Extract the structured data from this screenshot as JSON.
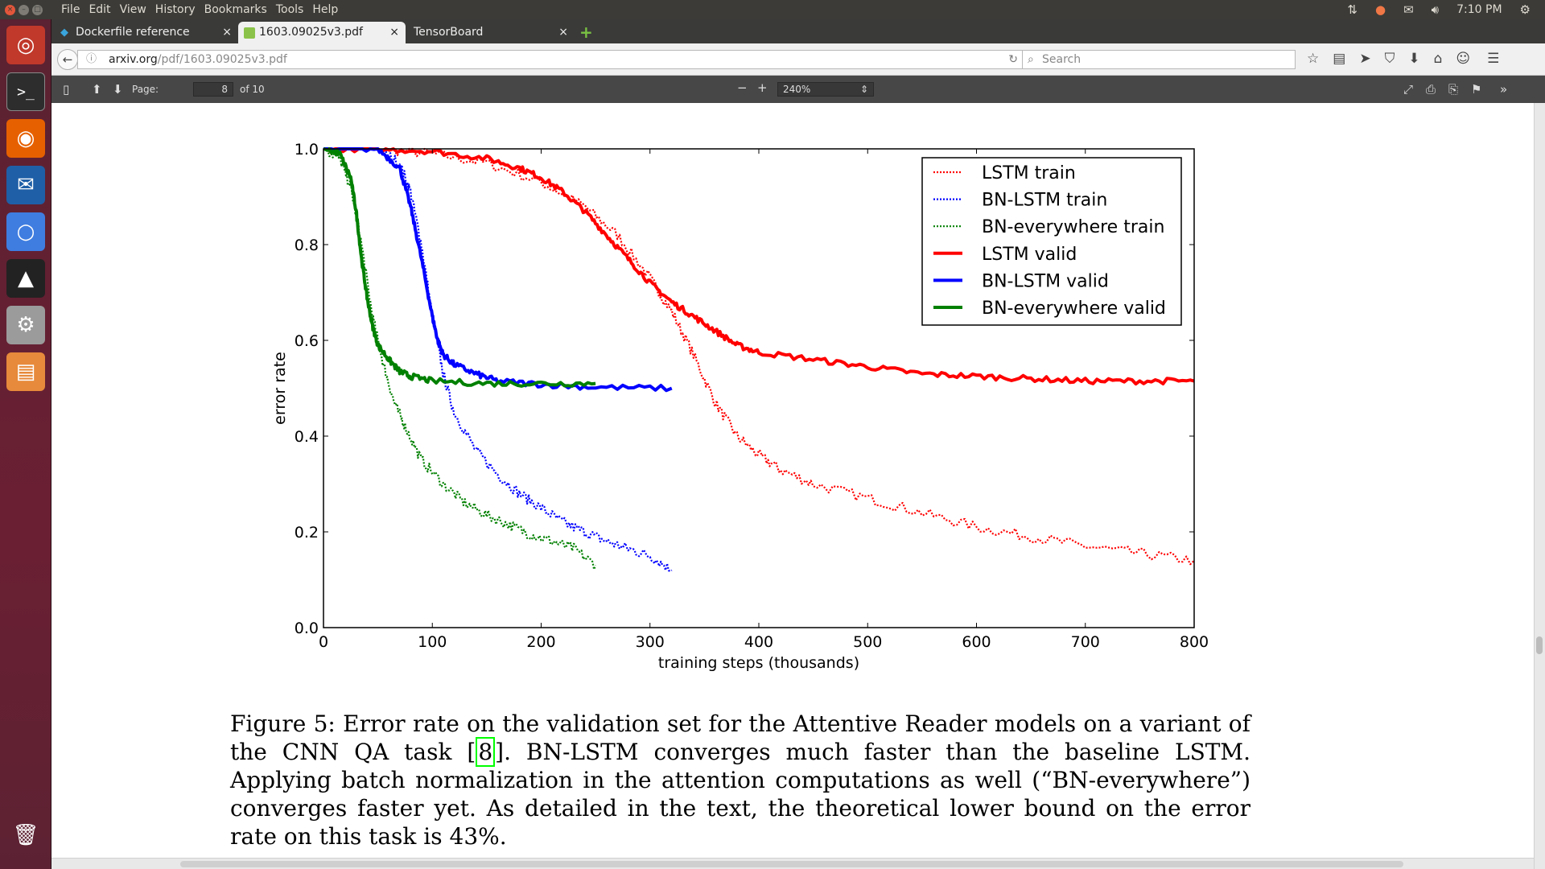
{
  "menubar": {
    "items": [
      "File",
      "Edit",
      "View",
      "History",
      "Bookmarks",
      "Tools",
      "Help"
    ],
    "clock": "7:10 PM"
  },
  "tabs": [
    {
      "label": "Dockerfile reference",
      "active": false
    },
    {
      "label": "1603.09025v3.pdf",
      "active": true
    },
    {
      "label": "TensorBoard",
      "active": false
    }
  ],
  "navbar": {
    "url_host": "arxiv.org",
    "url_path": "/pdf/1603.09025v3.pdf",
    "search_placeholder": "Search"
  },
  "pdf_toolbar": {
    "page_label": "Page:",
    "page_current": "8",
    "page_total": "of 10",
    "zoom": "240%"
  },
  "chart_data": {
    "type": "line",
    "title": "",
    "xlabel": "training steps (thousands)",
    "ylabel": "error rate",
    "xlim": [
      0,
      800
    ],
    "ylim": [
      0.0,
      1.0
    ],
    "xticks": [
      "0",
      "100",
      "200",
      "300",
      "400",
      "500",
      "600",
      "700",
      "800"
    ],
    "yticks": [
      "0.0",
      "0.2",
      "0.4",
      "0.6",
      "0.8",
      "1.0"
    ],
    "grid": false,
    "legend_position": "top-right",
    "series": [
      {
        "name": "LSTM train",
        "style": "dotted",
        "color": "#ff0000",
        "x": [
          0,
          50,
          100,
          150,
          200,
          240,
          270,
          300,
          320,
          340,
          360,
          380,
          400,
          420,
          450,
          500,
          550,
          600,
          650,
          700,
          750,
          800
        ],
        "y": [
          1.0,
          1.0,
          0.99,
          0.97,
          0.93,
          0.88,
          0.82,
          0.73,
          0.66,
          0.57,
          0.47,
          0.4,
          0.36,
          0.33,
          0.3,
          0.27,
          0.24,
          0.21,
          0.19,
          0.17,
          0.155,
          0.14
        ]
      },
      {
        "name": "BN-LSTM train",
        "style": "dotted",
        "color": "#0000ff",
        "x": [
          0,
          50,
          70,
          80,
          90,
          100,
          110,
          120,
          140,
          160,
          180,
          200,
          220,
          240,
          260,
          280,
          300,
          320
        ],
        "y": [
          1.0,
          1.0,
          0.97,
          0.91,
          0.8,
          0.65,
          0.53,
          0.45,
          0.37,
          0.32,
          0.28,
          0.25,
          0.22,
          0.2,
          0.18,
          0.165,
          0.15,
          0.12
        ]
      },
      {
        "name": "BN-everywhere train",
        "style": "dotted",
        "color": "#008000",
        "x": [
          0,
          15,
          25,
          35,
          45,
          55,
          65,
          75,
          90,
          110,
          130,
          150,
          170,
          190,
          210,
          230,
          250
        ],
        "y": [
          1.0,
          0.98,
          0.92,
          0.8,
          0.65,
          0.55,
          0.47,
          0.42,
          0.35,
          0.3,
          0.26,
          0.235,
          0.215,
          0.195,
          0.18,
          0.165,
          0.13
        ]
      },
      {
        "name": "LSTM valid",
        "style": "solid",
        "color": "#ff0000",
        "x": [
          0,
          50,
          100,
          150,
          180,
          200,
          220,
          240,
          260,
          280,
          300,
          320,
          340,
          360,
          380,
          400,
          450,
          500,
          550,
          600,
          650,
          700,
          750,
          800
        ],
        "y": [
          1.0,
          1.0,
          0.995,
          0.98,
          0.96,
          0.94,
          0.91,
          0.87,
          0.82,
          0.77,
          0.72,
          0.68,
          0.65,
          0.62,
          0.59,
          0.575,
          0.56,
          0.545,
          0.53,
          0.525,
          0.52,
          0.515,
          0.515,
          0.515
        ]
      },
      {
        "name": "BN-LSTM valid",
        "style": "solid",
        "color": "#0000ff",
        "x": [
          0,
          50,
          70,
          80,
          90,
          100,
          105,
          110,
          120,
          140,
          160,
          200,
          250,
          320
        ],
        "y": [
          1.0,
          1.0,
          0.96,
          0.88,
          0.77,
          0.65,
          0.6,
          0.57,
          0.55,
          0.53,
          0.515,
          0.508,
          0.502,
          0.5
        ]
      },
      {
        "name": "BN-everywhere valid",
        "style": "solid",
        "color": "#008000",
        "x": [
          0,
          15,
          25,
          30,
          35,
          40,
          45,
          50,
          60,
          70,
          80,
          100,
          150,
          200,
          250
        ],
        "y": [
          1.0,
          0.99,
          0.94,
          0.87,
          0.77,
          0.69,
          0.63,
          0.59,
          0.56,
          0.535,
          0.525,
          0.515,
          0.51,
          0.51,
          0.51
        ]
      }
    ]
  },
  "caption": {
    "part1": "Figure 5: Error rate on the validation set for the Attentive Reader models on a variant of the CNN QA task [",
    "cite": "8",
    "part2": "]. BN-LSTM converges much faster than the baseline LSTM. Applying batch normalization in the attention computations as well (“BN-everywhere”) converges faster yet.  As detailed in the text, the theoretical lower bound on the error rate on this task is 43%."
  }
}
